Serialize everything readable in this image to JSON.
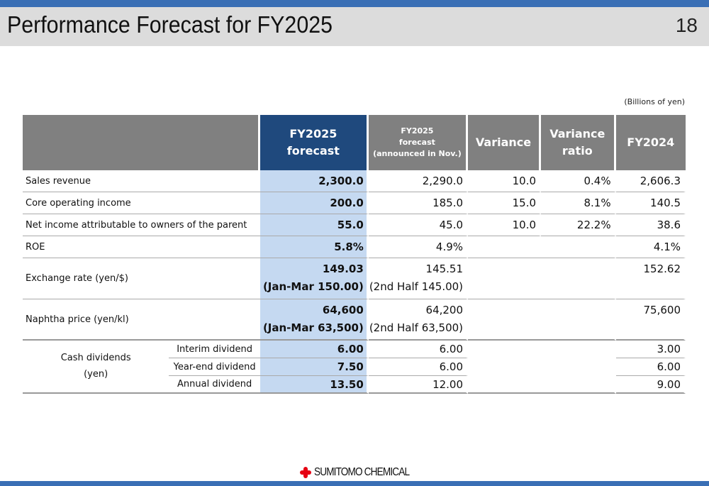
{
  "header": {
    "title": "Performance Forecast for FY2025",
    "page_number": "18"
  },
  "unit": "(Billions of yen)",
  "columns": {
    "fy2025_forecast_1": "FY2025",
    "fy2025_forecast_2": "forecast",
    "nov_1": "FY2025",
    "nov_2": "forecast",
    "nov_3": "(announced in Nov.)",
    "variance": "Variance",
    "ratio_1": "Variance",
    "ratio_2": "ratio",
    "fy2024": "FY2024"
  },
  "rows": [
    {
      "label": "Sales revenue",
      "fy2025": "2,300.0",
      "nov": "2,290.0",
      "variance": "10.0",
      "ratio": "0.4%",
      "fy2024": "2,606.3"
    },
    {
      "label": "Core operating income",
      "fy2025": "200.0",
      "nov": "185.0",
      "variance": "15.0",
      "ratio": "8.1%",
      "fy2024": "140.5"
    },
    {
      "label": "Net income attributable to owners of the parent",
      "fy2025": "55.0",
      "nov": "45.0",
      "variance": "10.0",
      "ratio": "22.2%",
      "fy2024": "38.6"
    },
    {
      "label": "ROE",
      "fy2025": "5.8%",
      "nov": "4.9%",
      "fy2024": "4.1%"
    },
    {
      "label": "Exchange rate (yen/$)",
      "fy2025": "149.03",
      "fy2025_sub": "(Jan-Mar 150.00)",
      "nov": "145.51",
      "nov_sub": "(2nd Half 145.00)",
      "fy2024": "152.62"
    },
    {
      "label": "Naphtha price (yen/kl)",
      "fy2025": "64,600",
      "fy2025_sub": "(Jan-Mar 63,500)",
      "nov": "64,200",
      "nov_sub": "(2nd Half 63,500)",
      "fy2024": "75,600"
    }
  ],
  "dividends": {
    "group_1": "Cash dividends",
    "group_2": "(yen)",
    "rows": [
      {
        "label": "Interim dividend",
        "fy2025": "6.00",
        "nov": "6.00",
        "fy2024": "3.00"
      },
      {
        "label": "Year-end dividend",
        "fy2025": "7.50",
        "nov": "6.00",
        "fy2024": "6.00"
      },
      {
        "label": "Annual dividend",
        "fy2025": "13.50",
        "nov": "12.00",
        "fy2024": "9.00"
      }
    ]
  },
  "footer": {
    "logo": "SUMITOMO CHEMICAL"
  }
}
